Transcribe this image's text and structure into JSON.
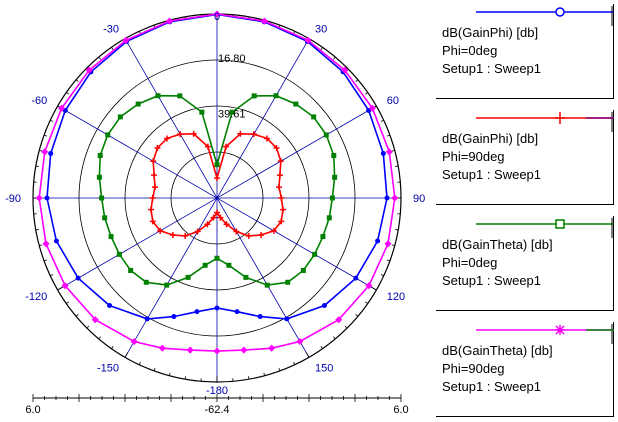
{
  "chart_data": {
    "type": "polar",
    "angle_labels": [
      {
        "angle": 0,
        "text": "0"
      },
      {
        "angle": 30,
        "text": "30"
      },
      {
        "angle": 60,
        "text": "60"
      },
      {
        "angle": 90,
        "text": "90"
      },
      {
        "angle": 120,
        "text": "120"
      },
      {
        "angle": 150,
        "text": "150"
      },
      {
        "angle": -180,
        "text": "-180"
      },
      {
        "angle": -150,
        "text": "-150"
      },
      {
        "angle": -120,
        "text": "-120"
      },
      {
        "angle": -90,
        "text": "-90"
      },
      {
        "angle": -60,
        "text": "-60"
      },
      {
        "angle": -30,
        "text": "-30"
      }
    ],
    "ring_labels": [
      "16.80",
      "39.61"
    ],
    "radial_axis": {
      "min": -62.4,
      "max": 6.0,
      "left_label": "6.0",
      "center_label": "-62.4",
      "right_label": "6.0"
    },
    "grid": true,
    "series": [
      {
        "name": "dB(GainPhi) [db]",
        "params": [
          "Phi=0deg",
          "Setup1 : Sweep1"
        ],
        "color": "#0000ff",
        "marker": "circle",
        "points": [
          [
            0,
            5.8
          ],
          [
            15,
            5.4
          ],
          [
            30,
            4.8
          ],
          [
            45,
            3.9
          ],
          [
            60,
            2.7
          ],
          [
            75,
            1.6
          ],
          [
            90,
            0.8
          ],
          [
            105,
            -0.6
          ],
          [
            120,
            -2.8
          ],
          [
            135,
            -5.9
          ],
          [
            150,
            -10.5
          ],
          [
            160,
            -15.5
          ],
          [
            170,
            -19.5
          ],
          [
            180,
            -21.5
          ],
          [
            190,
            -19.5
          ],
          [
            200,
            -15.5
          ],
          [
            210,
            -10.5
          ],
          [
            225,
            -5.9
          ],
          [
            240,
            -2.8
          ],
          [
            255,
            -0.6
          ],
          [
            270,
            0.8
          ],
          [
            285,
            1.6
          ],
          [
            300,
            2.7
          ],
          [
            315,
            3.9
          ],
          [
            330,
            4.8
          ],
          [
            345,
            5.4
          ],
          [
            360,
            5.8
          ]
        ]
      },
      {
        "name": "dB(GainPhi) [db]",
        "params": [
          "Phi=90deg",
          "Setup1 : Sweep1"
        ],
        "color": "#ff0000",
        "marker": "plus",
        "points": [
          [
            0,
            -55
          ],
          [
            10,
            -43
          ],
          [
            20,
            -37
          ],
          [
            30,
            -35
          ],
          [
            40,
            -33.5
          ],
          [
            50,
            -33.5
          ],
          [
            60,
            -35
          ],
          [
            70,
            -37.5
          ],
          [
            80,
            -39
          ],
          [
            90,
            -38.5
          ],
          [
            100,
            -37.5
          ],
          [
            110,
            -37
          ],
          [
            120,
            -38
          ],
          [
            130,
            -41
          ],
          [
            140,
            -44
          ],
          [
            150,
            -48
          ],
          [
            160,
            -52
          ],
          [
            170,
            -55
          ],
          [
            180,
            -57
          ],
          [
            190,
            -55
          ],
          [
            200,
            -52
          ],
          [
            210,
            -48
          ],
          [
            220,
            -44
          ],
          [
            230,
            -41
          ],
          [
            240,
            -38
          ],
          [
            250,
            -37
          ],
          [
            260,
            -37.5
          ],
          [
            270,
            -38.5
          ],
          [
            280,
            -39
          ],
          [
            290,
            -37.5
          ],
          [
            300,
            -35
          ],
          [
            310,
            -33.5
          ],
          [
            320,
            -33.5
          ],
          [
            330,
            -35
          ],
          [
            340,
            -37
          ],
          [
            350,
            -43
          ],
          [
            360,
            -55
          ]
        ]
      },
      {
        "name": "dB(GainTheta) [db]",
        "params": [
          "Phi=0deg",
          "Setup1 : Sweep1"
        ],
        "color": "#008000",
        "marker": "square",
        "points": [
          [
            0,
            -50
          ],
          [
            10,
            -30
          ],
          [
            20,
            -22
          ],
          [
            30,
            -18.5
          ],
          [
            40,
            -16.8
          ],
          [
            50,
            -15.5
          ],
          [
            60,
            -15.5
          ],
          [
            70,
            -16.2
          ],
          [
            80,
            -18
          ],
          [
            90,
            -19.5
          ],
          [
            100,
            -20
          ],
          [
            110,
            -20.5
          ],
          [
            120,
            -20.5
          ],
          [
            130,
            -20.5
          ],
          [
            140,
            -21.5
          ],
          [
            150,
            -25
          ],
          [
            160,
            -31
          ],
          [
            170,
            -37
          ],
          [
            180,
            -40
          ],
          [
            190,
            -37
          ],
          [
            200,
            -31
          ],
          [
            210,
            -25
          ],
          [
            220,
            -21.5
          ],
          [
            230,
            -20.5
          ],
          [
            240,
            -20.5
          ],
          [
            250,
            -20.5
          ],
          [
            260,
            -20
          ],
          [
            270,
            -19.5
          ],
          [
            280,
            -18
          ],
          [
            290,
            -16.2
          ],
          [
            300,
            -15.5
          ],
          [
            310,
            -15.5
          ],
          [
            320,
            -16.8
          ],
          [
            330,
            -18.5
          ],
          [
            340,
            -22
          ],
          [
            350,
            -30
          ],
          [
            360,
            -50
          ]
        ]
      },
      {
        "name": "dB(GainTheta) [db]",
        "params": [
          "Phi=90deg",
          "Setup1 : Sweep1"
        ],
        "color": "#ff00ff",
        "marker": "star",
        "points": [
          [
            0,
            6.0
          ],
          [
            15,
            5.7
          ],
          [
            30,
            5.3
          ],
          [
            45,
            4.8
          ],
          [
            60,
            4.3
          ],
          [
            75,
            3.9
          ],
          [
            90,
            3.7
          ],
          [
            105,
            3.4
          ],
          [
            120,
            2.8
          ],
          [
            135,
            1.6
          ],
          [
            150,
            -0.8
          ],
          [
            160,
            -3.0
          ],
          [
            170,
            -5.0
          ],
          [
            180,
            -5.5
          ],
          [
            190,
            -5.0
          ],
          [
            200,
            -3.0
          ],
          [
            210,
            -0.8
          ],
          [
            225,
            1.6
          ],
          [
            240,
            2.8
          ],
          [
            255,
            3.4
          ],
          [
            270,
            3.7
          ],
          [
            285,
            3.9
          ],
          [
            300,
            4.3
          ],
          [
            315,
            4.8
          ],
          [
            330,
            5.3
          ],
          [
            345,
            5.7
          ],
          [
            360,
            6.0
          ]
        ]
      }
    ]
  }
}
